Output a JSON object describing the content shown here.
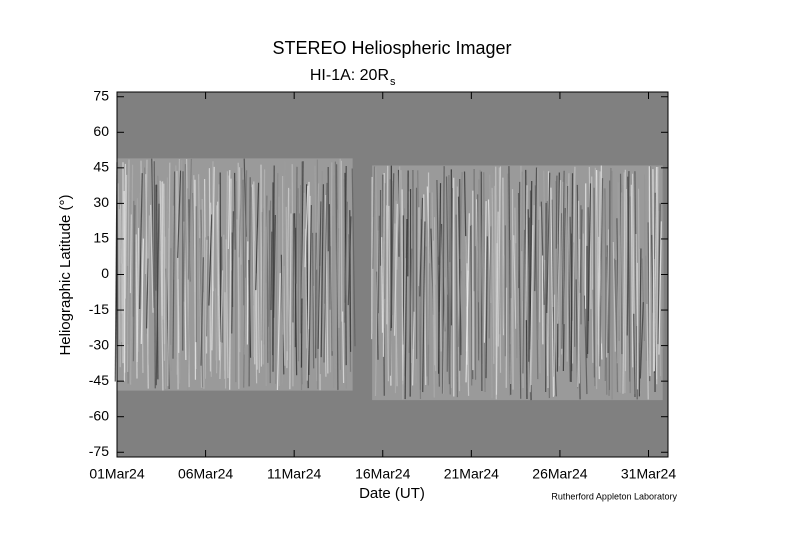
{
  "chart_data": {
    "type": "jmap",
    "title": "STEREO Heliospheric Imager",
    "subtitle": "HI-1A: 20R",
    "subtitle_subscript": "s",
    "x_label": "Date (UT)",
    "y_label": "Heliographic Latitude (°)",
    "credit": "Rutherford Appleton Laboratory",
    "xlim": [
      0,
      31.1
    ],
    "xticks": [
      {
        "value": 0,
        "label": "01Mar24"
      },
      {
        "value": 5,
        "label": "06Mar24"
      },
      {
        "value": 10,
        "label": "11Mar24"
      },
      {
        "value": 15,
        "label": "16Mar24"
      },
      {
        "value": 20,
        "label": "21Mar24"
      },
      {
        "value": 25,
        "label": "26Mar24"
      },
      {
        "value": 30,
        "label": "31Mar24"
      }
    ],
    "ylim": [
      -77,
      77
    ],
    "yticks": [
      75,
      60,
      45,
      30,
      15,
      0,
      -15,
      -30,
      -45,
      -60,
      -75
    ],
    "background_color": "#808080",
    "segments": [
      {
        "x": [
          0,
          13.3
        ],
        "lat": [
          -49,
          49
        ]
      },
      {
        "x": [
          14.4,
          30.8
        ],
        "lat": [
          -53,
          46
        ]
      }
    ]
  }
}
